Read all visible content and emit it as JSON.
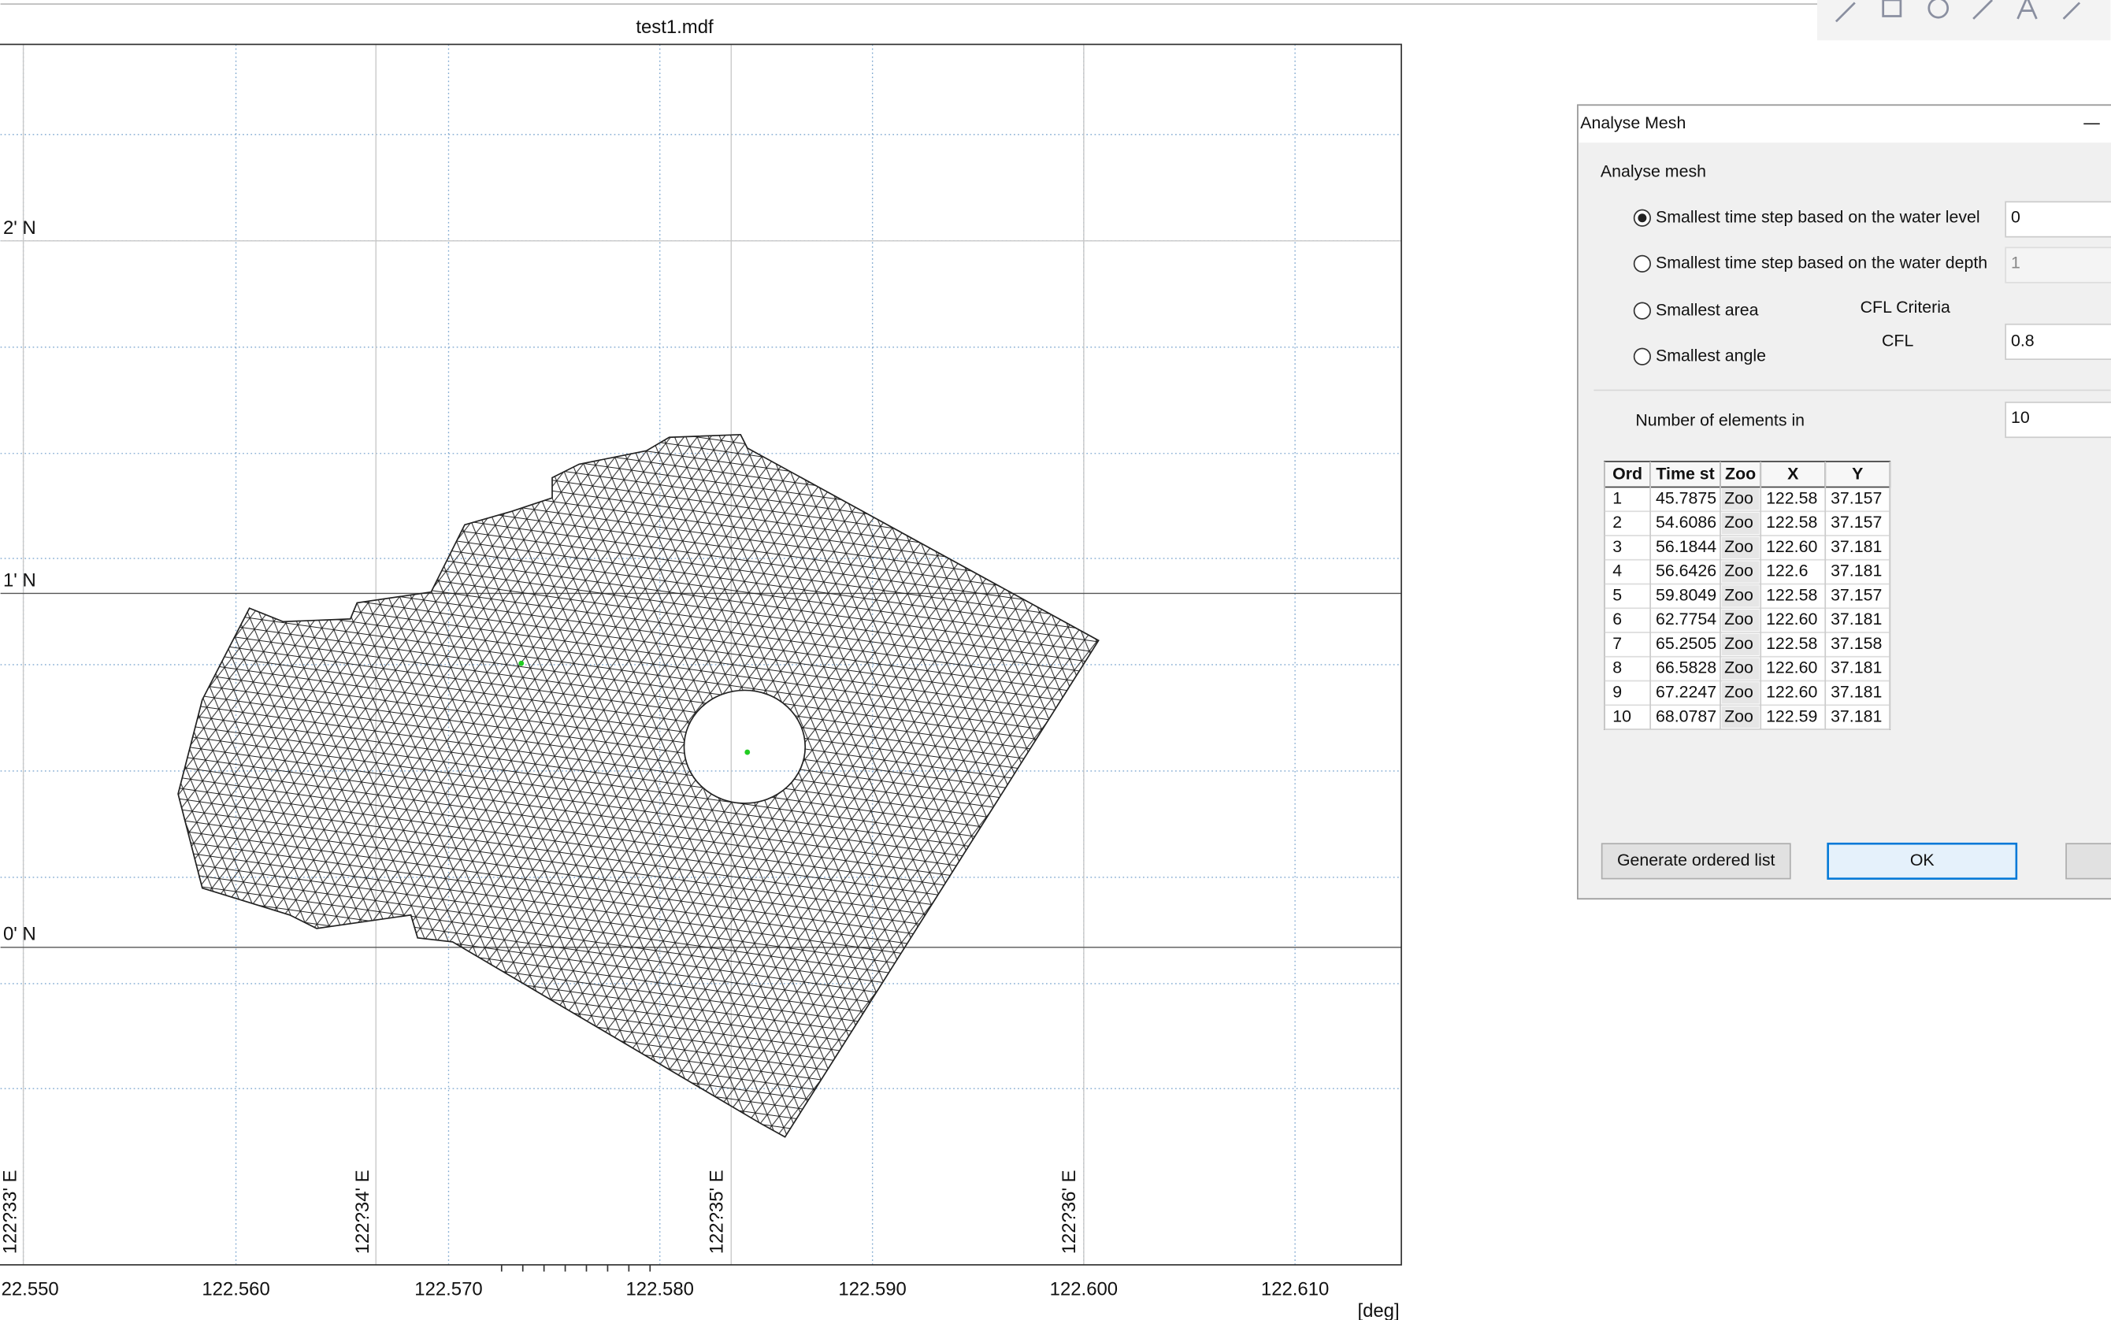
{
  "plot": {
    "title": "test1.mdf",
    "lat_labels": [
      "2' N",
      "1' N",
      "0' N"
    ],
    "lon_labels": [
      "122?33' E",
      "122?34' E",
      "122?35' E",
      "122?36' E"
    ],
    "x_tick_labels": [
      "22.550",
      "122.560",
      "122.570",
      "122.580",
      "122.590",
      "122.600",
      "122.610"
    ],
    "unit": "[deg]"
  },
  "dialog": {
    "title": "Analyse Mesh",
    "group": "Analyse mesh",
    "radios": [
      {
        "label": "Smallest time step based on the water level",
        "checked": true
      },
      {
        "label": "Smallest time step based on the water depth",
        "checked": false
      },
      {
        "label": "Smallest area",
        "checked": false
      },
      {
        "label": "Smallest angle",
        "checked": false
      }
    ],
    "level_input": "0",
    "depth_input": "1",
    "cfl_group": "CFL Criteria",
    "cfl_label": "CFL",
    "cfl_input": "0.8",
    "elements_label": "Number of elements in",
    "elements_input": "10",
    "table": {
      "headers": [
        "Ord",
        "Time st",
        "Zoo",
        "X",
        "Y"
      ],
      "rows": [
        [
          "1",
          "45.7875",
          "Zoo",
          "122.58",
          "37.157"
        ],
        [
          "2",
          "54.6086",
          "Zoo",
          "122.58",
          "37.157"
        ],
        [
          "3",
          "56.1844",
          "Zoo",
          "122.60",
          "37.181"
        ],
        [
          "4",
          "56.6426",
          "Zoo",
          "122.6",
          "37.181"
        ],
        [
          "5",
          "59.8049",
          "Zoo",
          "122.58",
          "37.157"
        ],
        [
          "6",
          "62.7754",
          "Zoo",
          "122.60",
          "37.181"
        ],
        [
          "7",
          "65.2505",
          "Zoo",
          "122.58",
          "37.158"
        ],
        [
          "8",
          "66.5828",
          "Zoo",
          "122.60",
          "37.181"
        ],
        [
          "9",
          "67.2247",
          "Zoo",
          "122.60",
          "37.181"
        ],
        [
          "10",
          "68.0787",
          "Zoo",
          "122.59",
          "37.181"
        ]
      ]
    },
    "buttons": [
      "Generate ordered list",
      "OK"
    ]
  }
}
